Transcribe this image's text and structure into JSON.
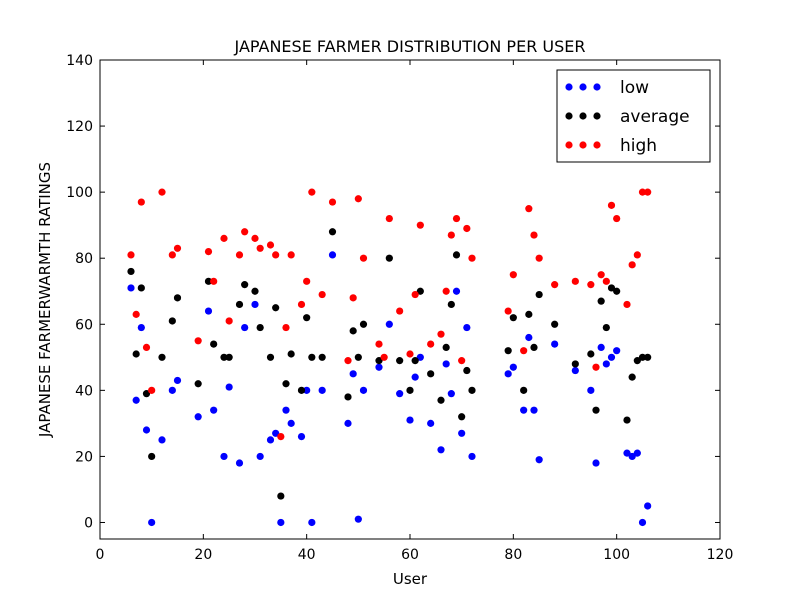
{
  "chart_data": {
    "type": "scatter",
    "title": "JAPANESE FARMER DISTRIBUTION PER USER",
    "xlabel": "User",
    "ylabel": "JAPANESE FARMERWARMTH RATINGS",
    "xlim": [
      0,
      120
    ],
    "ylim": [
      -5,
      140
    ],
    "xticks": [
      0,
      20,
      40,
      60,
      80,
      100,
      120
    ],
    "yticks": [
      0,
      20,
      40,
      60,
      80,
      100,
      120,
      140
    ],
    "grid": false,
    "legend_position": "top-right",
    "series": [
      {
        "name": "low",
        "color": "#0000ff",
        "points": [
          [
            6,
            71
          ],
          [
            7,
            37
          ],
          [
            8,
            59
          ],
          [
            9,
            28
          ],
          [
            10,
            0
          ],
          [
            12,
            25
          ],
          [
            14,
            40
          ],
          [
            15,
            43
          ],
          [
            19,
            32
          ],
          [
            21,
            64
          ],
          [
            22,
            34
          ],
          [
            24,
            20
          ],
          [
            25,
            41
          ],
          [
            27,
            18
          ],
          [
            28,
            59
          ],
          [
            30,
            66
          ],
          [
            31,
            20
          ],
          [
            33,
            25
          ],
          [
            34,
            27
          ],
          [
            35,
            0
          ],
          [
            36,
            34
          ],
          [
            37,
            30
          ],
          [
            39,
            26
          ],
          [
            40,
            40
          ],
          [
            41,
            0
          ],
          [
            43,
            40
          ],
          [
            45,
            81
          ],
          [
            48,
            30
          ],
          [
            49,
            45
          ],
          [
            50,
            1
          ],
          [
            51,
            40
          ],
          [
            54,
            47
          ],
          [
            56,
            60
          ],
          [
            58,
            39
          ],
          [
            60,
            31
          ],
          [
            61,
            44
          ],
          [
            62,
            50
          ],
          [
            64,
            30
          ],
          [
            66,
            22
          ],
          [
            67,
            48
          ],
          [
            68,
            39
          ],
          [
            69,
            70
          ],
          [
            70,
            27
          ],
          [
            71,
            59
          ],
          [
            72,
            20
          ],
          [
            79,
            45
          ],
          [
            80,
            47
          ],
          [
            82,
            34
          ],
          [
            83,
            56
          ],
          [
            84,
            34
          ],
          [
            85,
            19
          ],
          [
            88,
            54
          ],
          [
            92,
            46
          ],
          [
            95,
            40
          ],
          [
            96,
            18
          ],
          [
            97,
            53
          ],
          [
            98,
            48
          ],
          [
            99,
            50
          ],
          [
            100,
            52
          ],
          [
            102,
            21
          ],
          [
            103,
            20
          ],
          [
            104,
            21
          ],
          [
            105,
            0
          ],
          [
            106,
            5
          ]
        ]
      },
      {
        "name": "average",
        "color": "#000000",
        "points": [
          [
            6,
            76
          ],
          [
            7,
            51
          ],
          [
            8,
            71
          ],
          [
            9,
            39
          ],
          [
            10,
            20
          ],
          [
            12,
            50
          ],
          [
            14,
            61
          ],
          [
            15,
            68
          ],
          [
            19,
            42
          ],
          [
            21,
            73
          ],
          [
            22,
            54
          ],
          [
            24,
            50
          ],
          [
            25,
            50
          ],
          [
            27,
            66
          ],
          [
            28,
            72
          ],
          [
            30,
            70
          ],
          [
            31,
            59
          ],
          [
            33,
            50
          ],
          [
            34,
            65
          ],
          [
            35,
            8
          ],
          [
            36,
            42
          ],
          [
            37,
            51
          ],
          [
            39,
            40
          ],
          [
            40,
            62
          ],
          [
            41,
            50
          ],
          [
            43,
            50
          ],
          [
            45,
            88
          ],
          [
            48,
            38
          ],
          [
            49,
            58
          ],
          [
            50,
            50
          ],
          [
            51,
            60
          ],
          [
            54,
            49
          ],
          [
            56,
            80
          ],
          [
            58,
            49
          ],
          [
            60,
            40
          ],
          [
            61,
            49
          ],
          [
            62,
            70
          ],
          [
            64,
            45
          ],
          [
            66,
            37
          ],
          [
            67,
            53
          ],
          [
            68,
            66
          ],
          [
            69,
            81
          ],
          [
            70,
            32
          ],
          [
            71,
            46
          ],
          [
            72,
            40
          ],
          [
            79,
            52
          ],
          [
            80,
            62
          ],
          [
            82,
            40
          ],
          [
            83,
            63
          ],
          [
            84,
            53
          ],
          [
            85,
            69
          ],
          [
            88,
            60
          ],
          [
            92,
            48
          ],
          [
            95,
            51
          ],
          [
            96,
            34
          ],
          [
            97,
            67
          ],
          [
            98,
            59
          ],
          [
            99,
            71
          ],
          [
            100,
            70
          ],
          [
            102,
            31
          ],
          [
            103,
            44
          ],
          [
            104,
            49
          ],
          [
            105,
            50
          ],
          [
            106,
            50
          ]
        ]
      },
      {
        "name": "high",
        "color": "#ff0000",
        "points": [
          [
            6,
            81
          ],
          [
            7,
            63
          ],
          [
            8,
            97
          ],
          [
            9,
            53
          ],
          [
            10,
            40
          ],
          [
            12,
            100
          ],
          [
            14,
            81
          ],
          [
            15,
            83
          ],
          [
            19,
            55
          ],
          [
            21,
            82
          ],
          [
            22,
            73
          ],
          [
            24,
            86
          ],
          [
            25,
            61
          ],
          [
            27,
            81
          ],
          [
            28,
            88
          ],
          [
            30,
            86
          ],
          [
            31,
            83
          ],
          [
            33,
            84
          ],
          [
            34,
            81
          ],
          [
            35,
            26
          ],
          [
            36,
            59
          ],
          [
            37,
            81
          ],
          [
            39,
            66
          ],
          [
            40,
            73
          ],
          [
            41,
            100
          ],
          [
            43,
            69
          ],
          [
            45,
            97
          ],
          [
            48,
            49
          ],
          [
            49,
            68
          ],
          [
            50,
            98
          ],
          [
            51,
            80
          ],
          [
            54,
            54
          ],
          [
            55,
            50
          ],
          [
            56,
            92
          ],
          [
            58,
            64
          ],
          [
            60,
            51
          ],
          [
            61,
            69
          ],
          [
            62,
            90
          ],
          [
            64,
            54
          ],
          [
            66,
            57
          ],
          [
            67,
            70
          ],
          [
            68,
            87
          ],
          [
            69,
            92
          ],
          [
            70,
            49
          ],
          [
            71,
            89
          ],
          [
            72,
            80
          ],
          [
            79,
            64
          ],
          [
            80,
            75
          ],
          [
            82,
            52
          ],
          [
            83,
            95
          ],
          [
            84,
            87
          ],
          [
            85,
            80
          ],
          [
            88,
            72
          ],
          [
            92,
            73
          ],
          [
            95,
            72
          ],
          [
            96,
            47
          ],
          [
            97,
            75
          ],
          [
            98,
            73
          ],
          [
            99,
            96
          ],
          [
            100,
            92
          ],
          [
            102,
            66
          ],
          [
            103,
            78
          ],
          [
            104,
            81
          ],
          [
            105,
            100
          ],
          [
            106,
            100
          ]
        ]
      }
    ]
  }
}
